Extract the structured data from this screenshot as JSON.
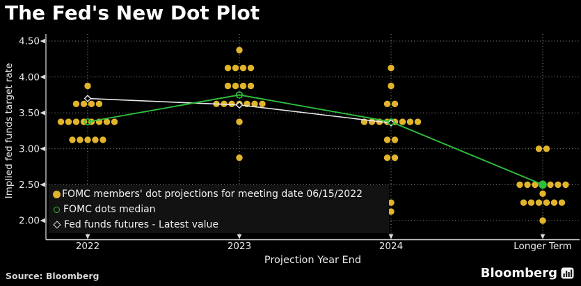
{
  "title": "The Fed's New Dot Plot",
  "source": {
    "text": "Source: Bloomberg"
  },
  "brand": {
    "name": "Bloomberg",
    "icon": "bar-chart-icon"
  },
  "colors": {
    "background": "#000000",
    "dots": "#E2B42C",
    "median_line": "#2FBE3C",
    "futures_line": "#E8E8E8",
    "gridline": "#9C9C9C",
    "text": "#F2F2F2"
  },
  "chart_data": {
    "type": "scatter",
    "title": "The Fed's New Dot Plot",
    "xlabel": "Projection Year End",
    "ylabel": "Implied fed funds target rate",
    "categories": [
      "2022",
      "2023",
      "2024",
      "Longer Term"
    ],
    "ylim": [
      2.0,
      4.5
    ],
    "yticks": [
      4.5,
      4.0,
      3.5,
      3.0,
      2.5,
      2.0
    ],
    "grid": "dotted",
    "legend_position": "inside-bottom-left",
    "series": [
      {
        "name": "FOMC members' dot projections for meeting date 06/15/2022",
        "type": "dot-cluster",
        "color": "#E2B42C",
        "clusters": [
          {
            "category": "2022",
            "dots": [
              {
                "value": 3.875,
                "count": 1
              },
              {
                "value": 3.625,
                "count": 4
              },
              {
                "value": 3.375,
                "count": 8
              },
              {
                "value": 3.125,
                "count": 5
              }
            ]
          },
          {
            "category": "2023",
            "dots": [
              {
                "value": 4.375,
                "count": 1
              },
              {
                "value": 4.125,
                "count": 4
              },
              {
                "value": 3.875,
                "count": 4
              },
              {
                "value": 3.625,
                "count": 7
              },
              {
                "value": 3.375,
                "count": 1
              },
              {
                "value": 2.875,
                "count": 1
              }
            ]
          },
          {
            "category": "2024",
            "dots": [
              {
                "value": 4.125,
                "count": 1
              },
              {
                "value": 3.875,
                "count": 1
              },
              {
                "value": 3.625,
                "count": 2
              },
              {
                "value": 3.375,
                "count": 8
              },
              {
                "value": 3.125,
                "count": 2
              },
              {
                "value": 2.875,
                "count": 2
              },
              {
                "value": 2.25,
                "count": 1
              },
              {
                "value": 2.125,
                "count": 1
              }
            ]
          },
          {
            "category": "Longer Term",
            "dots": [
              {
                "value": 3.0,
                "count": 2
              },
              {
                "value": 2.5,
                "count": 7
              },
              {
                "value": 2.375,
                "count": 1
              },
              {
                "value": 2.25,
                "count": 6
              },
              {
                "value": 2.0,
                "count": 1
              }
            ]
          }
        ]
      },
      {
        "name": "FOMC dots median",
        "type": "line",
        "marker": "open-circle",
        "color": "#2FBE3C",
        "values": [
          3.375,
          3.75,
          3.375,
          2.5
        ]
      },
      {
        "name": "Fed funds futures - Latest value",
        "type": "line",
        "marker": "open-diamond",
        "color": "#E8E8E8",
        "values": [
          3.7,
          3.61,
          3.36,
          null
        ]
      }
    ],
    "legend": {
      "entries": [
        {
          "swatch": "filled-circle",
          "color": "#E2B42C",
          "label": "FOMC members' dot projections for meeting date 06/15/2022"
        },
        {
          "swatch": "open-circle",
          "color": "#2FBE3C",
          "label": "FOMC dots median"
        },
        {
          "swatch": "open-diamond",
          "color": "#E8E8E8",
          "label": "Fed funds futures - Latest value"
        }
      ]
    }
  }
}
